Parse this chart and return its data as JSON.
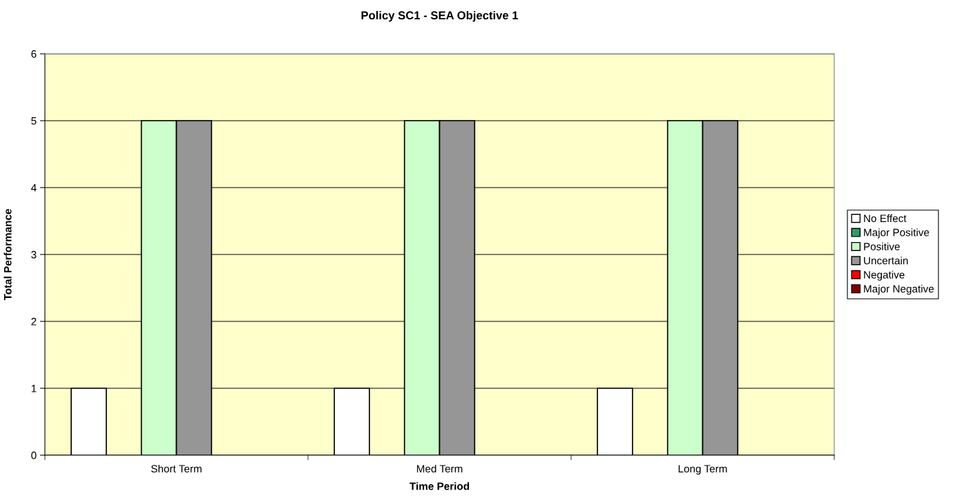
{
  "chart_data": {
    "type": "bar",
    "title": "Policy SC1 - SEA Objective 1",
    "xlabel": "Time Period",
    "ylabel": "Total Performance",
    "categories": [
      "Short Term",
      "Med Term",
      "Long Term"
    ],
    "series": [
      {
        "name": "No Effect",
        "color": "#ffffff",
        "values": [
          1,
          1,
          1
        ]
      },
      {
        "name": "Major Positive",
        "color": "#339966",
        "values": [
          0,
          0,
          0
        ]
      },
      {
        "name": "Positive",
        "color": "#ccffcc",
        "values": [
          5,
          5,
          5
        ]
      },
      {
        "name": "Uncertain",
        "color": "#969696",
        "values": [
          5,
          5,
          5
        ]
      },
      {
        "name": "Negative",
        "color": "#ff0000",
        "values": [
          0,
          0,
          0
        ]
      },
      {
        "name": "Major Negative",
        "color": "#800000",
        "values": [
          0,
          0,
          0
        ]
      }
    ],
    "ylim": [
      0,
      6
    ],
    "yticks": [
      0,
      1,
      2,
      3,
      4,
      5,
      6
    ],
    "grid": "y",
    "legend": "right"
  }
}
